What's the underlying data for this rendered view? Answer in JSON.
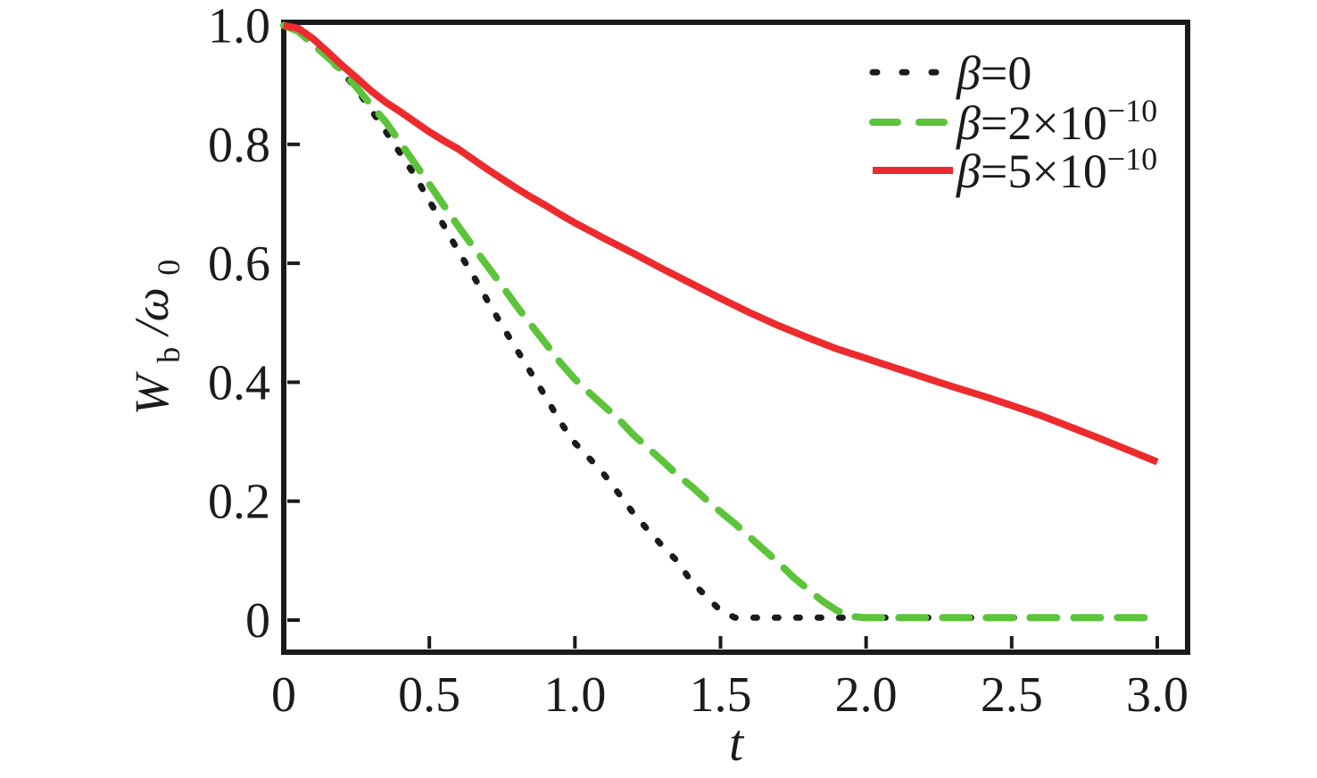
{
  "chart_data": {
    "type": "line",
    "title": "",
    "xlabel": "t",
    "ylabel": "Wb/ω0",
    "ylabel_parts": [
      "W",
      "b",
      "/ω",
      "0"
    ],
    "xlim": [
      0,
      3.1
    ],
    "ylim": [
      -0.054,
      1.006
    ],
    "grid": false,
    "legend_position": "top-right-inside",
    "background": "#ffffff",
    "frame_color": "#1b1b1b",
    "x_ticks": [
      {
        "t": 0.0,
        "label": "0"
      },
      {
        "t": 0.5,
        "label": "0.5"
      },
      {
        "t": 1.0,
        "label": "1.0"
      },
      {
        "t": 1.5,
        "label": "1.5"
      },
      {
        "t": 2.0,
        "label": "2.0"
      },
      {
        "t": 2.5,
        "label": "2.5"
      },
      {
        "t": 3.0,
        "label": "3.0"
      }
    ],
    "y_ticks": [
      {
        "v": 0.0,
        "label": "0"
      },
      {
        "v": 0.2,
        "label": "0.2"
      },
      {
        "v": 0.4,
        "label": "0.4"
      },
      {
        "v": 0.6,
        "label": "0.6"
      },
      {
        "v": 0.8,
        "label": "0.8"
      },
      {
        "v": 1.0,
        "label": "1.0"
      }
    ],
    "series": [
      {
        "name": "β=0",
        "slug": "beta-0",
        "color": "#1b1b1b",
        "style": "dotted",
        "legend": {
          "beta": "β",
          "rest": "=0",
          "sup": ""
        },
        "points": [
          [
            0,
            1.0
          ],
          [
            0.05,
            0.99
          ],
          [
            0.1,
            0.968
          ],
          [
            0.15,
            0.946
          ],
          [
            0.2,
            0.922
          ],
          [
            0.25,
            0.893
          ],
          [
            0.3,
            0.858
          ],
          [
            0.35,
            0.822
          ],
          [
            0.4,
            0.785
          ],
          [
            0.45,
            0.748
          ],
          [
            0.5,
            0.705
          ],
          [
            0.55,
            0.663
          ],
          [
            0.6,
            0.62
          ],
          [
            0.65,
            0.58
          ],
          [
            0.7,
            0.537
          ],
          [
            0.75,
            0.495
          ],
          [
            0.8,
            0.455
          ],
          [
            0.85,
            0.415
          ],
          [
            0.9,
            0.375
          ],
          [
            0.95,
            0.333
          ],
          [
            1.0,
            0.298
          ],
          [
            1.05,
            0.272
          ],
          [
            1.1,
            0.245
          ],
          [
            1.15,
            0.213
          ],
          [
            1.2,
            0.18
          ],
          [
            1.25,
            0.152
          ],
          [
            1.3,
            0.125
          ],
          [
            1.35,
            0.1
          ],
          [
            1.4,
            0.065
          ],
          [
            1.45,
            0.04
          ],
          [
            1.5,
            0.016
          ],
          [
            1.55,
            0.004
          ],
          [
            1.7,
            0.004
          ],
          [
            1.9,
            0.004
          ],
          [
            2.1,
            0.004
          ],
          [
            2.3,
            0.004
          ],
          [
            2.5,
            0.004
          ],
          [
            2.7,
            0.004
          ],
          [
            2.9,
            0.004
          ],
          [
            3.0,
            0.004
          ]
        ]
      },
      {
        "name": "β=2×10⁻¹⁰",
        "slug": "beta-2e-10",
        "color": "#5cc43a",
        "style": "dashed",
        "legend": {
          "beta": "β",
          "rest": "=2×10",
          "sup": "−10"
        },
        "points": [
          [
            0,
            1.0
          ],
          [
            0.05,
            0.99
          ],
          [
            0.1,
            0.968
          ],
          [
            0.15,
            0.947
          ],
          [
            0.2,
            0.924
          ],
          [
            0.25,
            0.896
          ],
          [
            0.3,
            0.866
          ],
          [
            0.35,
            0.838
          ],
          [
            0.4,
            0.803
          ],
          [
            0.45,
            0.768
          ],
          [
            0.5,
            0.733
          ],
          [
            0.55,
            0.697
          ],
          [
            0.6,
            0.662
          ],
          [
            0.65,
            0.628
          ],
          [
            0.7,
            0.595
          ],
          [
            0.75,
            0.562
          ],
          [
            0.8,
            0.528
          ],
          [
            0.85,
            0.496
          ],
          [
            0.9,
            0.465
          ],
          [
            0.95,
            0.433
          ],
          [
            1.0,
            0.405
          ],
          [
            1.05,
            0.382
          ],
          [
            1.1,
            0.36
          ],
          [
            1.15,
            0.338
          ],
          [
            1.2,
            0.312
          ],
          [
            1.25,
            0.29
          ],
          [
            1.3,
            0.268
          ],
          [
            1.35,
            0.245
          ],
          [
            1.4,
            0.225
          ],
          [
            1.45,
            0.203
          ],
          [
            1.5,
            0.182
          ],
          [
            1.55,
            0.162
          ],
          [
            1.6,
            0.14
          ],
          [
            1.65,
            0.118
          ],
          [
            1.7,
            0.096
          ],
          [
            1.75,
            0.072
          ],
          [
            1.8,
            0.052
          ],
          [
            1.85,
            0.032
          ],
          [
            1.9,
            0.016
          ],
          [
            1.95,
            0.006
          ],
          [
            2.0,
            0.004
          ],
          [
            2.2,
            0.004
          ],
          [
            2.4,
            0.004
          ],
          [
            2.6,
            0.004
          ],
          [
            2.8,
            0.004
          ],
          [
            3.0,
            0.004
          ]
        ]
      },
      {
        "name": "β=5×10⁻¹⁰",
        "slug": "beta-5e-10",
        "color": "#ed2b2e",
        "style": "solid",
        "legend": {
          "beta": "β",
          "rest": "=5×10",
          "sup": "−10"
        },
        "points": [
          [
            0,
            1.0
          ],
          [
            0.05,
            0.995
          ],
          [
            0.1,
            0.978
          ],
          [
            0.15,
            0.956
          ],
          [
            0.2,
            0.933
          ],
          [
            0.25,
            0.912
          ],
          [
            0.3,
            0.89
          ],
          [
            0.35,
            0.871
          ],
          [
            0.4,
            0.855
          ],
          [
            0.45,
            0.838
          ],
          [
            0.5,
            0.821
          ],
          [
            0.55,
            0.806
          ],
          [
            0.6,
            0.792
          ],
          [
            0.65,
            0.775
          ],
          [
            0.7,
            0.758
          ],
          [
            0.75,
            0.742
          ],
          [
            0.8,
            0.726
          ],
          [
            0.85,
            0.711
          ],
          [
            0.9,
            0.697
          ],
          [
            0.95,
            0.682
          ],
          [
            1.0,
            0.668
          ],
          [
            1.1,
            0.642
          ],
          [
            1.2,
            0.617
          ],
          [
            1.3,
            0.591
          ],
          [
            1.4,
            0.566
          ],
          [
            1.5,
            0.541
          ],
          [
            1.6,
            0.517
          ],
          [
            1.7,
            0.495
          ],
          [
            1.8,
            0.475
          ],
          [
            1.9,
            0.456
          ],
          [
            2.0,
            0.44
          ],
          [
            2.1,
            0.424
          ],
          [
            2.2,
            0.408
          ],
          [
            2.3,
            0.392
          ],
          [
            2.4,
            0.377
          ],
          [
            2.5,
            0.361
          ],
          [
            2.6,
            0.344
          ],
          [
            2.7,
            0.325
          ],
          [
            2.8,
            0.306
          ],
          [
            2.9,
            0.286
          ],
          [
            3.0,
            0.266
          ]
        ]
      }
    ]
  }
}
